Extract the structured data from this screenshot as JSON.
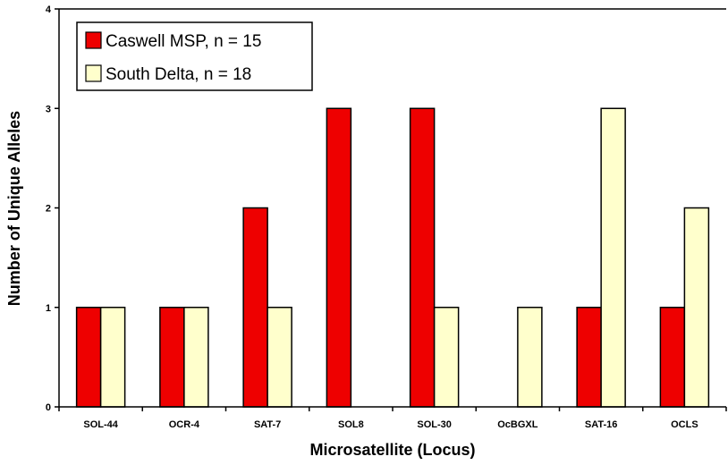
{
  "chart_data": {
    "type": "bar",
    "title": "",
    "xlabel": "Microsatellite (Locus)",
    "ylabel": "Number of Unique Alleles",
    "ylim": [
      0,
      4
    ],
    "yticks": [
      "0",
      "1",
      "2",
      "3",
      "4"
    ],
    "categories": [
      "SOL-44",
      "OCR-4",
      "SAT-7",
      "SOL8",
      "SOL-30",
      "OcBGXL",
      "SAT-16",
      "OCLS"
    ],
    "series": [
      {
        "name": "Caswell MSP, n = 15",
        "color": "#ee0000",
        "values": [
          1,
          1,
          2,
          3,
          3,
          0,
          1,
          1
        ]
      },
      {
        "name": "South Delta, n = 18",
        "color": "#ffffcc",
        "values": [
          1,
          1,
          1,
          0,
          1,
          1,
          3,
          2
        ]
      }
    ],
    "grid": false,
    "legend_position": "top-left"
  }
}
